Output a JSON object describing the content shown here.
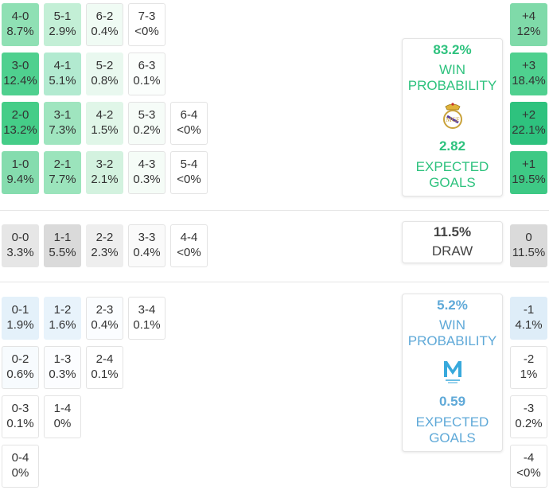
{
  "colors": {
    "home": "#2ec27e",
    "away": "#5fa9d8",
    "draw_text": "#444444"
  },
  "home_scores": [
    {
      "score": "4-0",
      "pct": "8.7%",
      "color": "#8fe0b4"
    },
    {
      "score": "5-1",
      "pct": "2.9%",
      "color": "#c3efd6"
    },
    {
      "score": "6-2",
      "pct": "0.4%",
      "color": "#f0fbf4"
    },
    {
      "score": "7-3",
      "pct": "<0%",
      "color": "#ffffff"
    },
    {
      "score": "3-0",
      "pct": "12.4%",
      "color": "#4fd08f"
    },
    {
      "score": "4-1",
      "pct": "5.1%",
      "color": "#b2ead0"
    },
    {
      "score": "5-2",
      "pct": "0.8%",
      "color": "#e9f8ef"
    },
    {
      "score": "6-3",
      "pct": "0.1%",
      "color": "#fbfefc"
    },
    {
      "score": "2-0",
      "pct": "13.2%",
      "color": "#45cd88"
    },
    {
      "score": "3-1",
      "pct": "7.3%",
      "color": "#9fe5bf"
    },
    {
      "score": "4-2",
      "pct": "1.5%",
      "color": "#e0f6e8"
    },
    {
      "score": "5-3",
      "pct": "0.2%",
      "color": "#f6fcf8"
    },
    {
      "score": "6-4",
      "pct": "<0%",
      "color": "#ffffff"
    },
    {
      "score": "1-0",
      "pct": "9.4%",
      "color": "#85dcae"
    },
    {
      "score": "2-1",
      "pct": "7.7%",
      "color": "#9be4bc"
    },
    {
      "score": "3-2",
      "pct": "2.1%",
      "color": "#d3f2df"
    },
    {
      "score": "4-3",
      "pct": "0.3%",
      "color": "#f5fcf7"
    },
    {
      "score": "5-4",
      "pct": "<0%",
      "color": "#ffffff"
    }
  ],
  "draw_scores": [
    {
      "score": "0-0",
      "pct": "3.3%",
      "color": "#e6e6e6"
    },
    {
      "score": "1-1",
      "pct": "5.5%",
      "color": "#dadada"
    },
    {
      "score": "2-2",
      "pct": "2.3%",
      "color": "#eeeeee"
    },
    {
      "score": "3-3",
      "pct": "0.4%",
      "color": "#fafafa"
    },
    {
      "score": "4-4",
      "pct": "<0%",
      "color": "#ffffff"
    }
  ],
  "away_scores": [
    {
      "score": "0-1",
      "pct": "1.9%",
      "color": "#e4f1fa"
    },
    {
      "score": "1-2",
      "pct": "1.6%",
      "color": "#e8f3fb"
    },
    {
      "score": "2-3",
      "pct": "0.4%",
      "color": "#fbfdff"
    },
    {
      "score": "3-4",
      "pct": "0.1%",
      "color": "#ffffff"
    },
    {
      "score": "0-2",
      "pct": "0.6%",
      "color": "#f7fbfe"
    },
    {
      "score": "1-3",
      "pct": "0.3%",
      "color": "#fcfdff"
    },
    {
      "score": "2-4",
      "pct": "0.1%",
      "color": "#ffffff"
    },
    {
      "score": "0-3",
      "pct": "0.1%",
      "color": "#ffffff"
    },
    {
      "score": "1-4",
      "pct": "0%",
      "color": "#ffffff"
    },
    {
      "score": "0-4",
      "pct": "0%",
      "color": "#ffffff"
    }
  ],
  "home_margins": [
    {
      "margin": "+4",
      "pct": "12%",
      "color": "#7fdaa9"
    },
    {
      "margin": "+3",
      "pct": "18.4%",
      "color": "#4fd08f"
    },
    {
      "margin": "+2",
      "pct": "22.1%",
      "color": "#2ec27e"
    },
    {
      "margin": "+1",
      "pct": "19.5%",
      "color": "#3ec985"
    }
  ],
  "draw_margin": {
    "margin": "0",
    "pct": "11.5%",
    "color": "#dadada"
  },
  "away_margins": [
    {
      "margin": "-1",
      "pct": "4.1%",
      "color": "#deedf8"
    },
    {
      "margin": "-2",
      "pct": "1%",
      "color": "#ffffff"
    },
    {
      "margin": "-3",
      "pct": "0.2%",
      "color": "#ffffff"
    },
    {
      "margin": "-4",
      "pct": "<0%",
      "color": "#ffffff"
    }
  ],
  "home_card": {
    "win_pct": "83.2%",
    "win_label_1": "WIN",
    "win_label_2": "PROBABILITY",
    "xg": "2.82",
    "xg_label_1": "EXPECTED",
    "xg_label_2": "GOALS",
    "crest_icon": "real-madrid-crest-icon"
  },
  "draw_card": {
    "pct": "11.5%",
    "label": "DRAW"
  },
  "away_card": {
    "win_pct": "5.2%",
    "win_label_1": "WIN",
    "win_label_2": "PROBABILITY",
    "xg": "0.59",
    "xg_label_1": "EXPECTED",
    "xg_label_2": "GOALS",
    "crest_icon": "marseille-crest-icon"
  }
}
